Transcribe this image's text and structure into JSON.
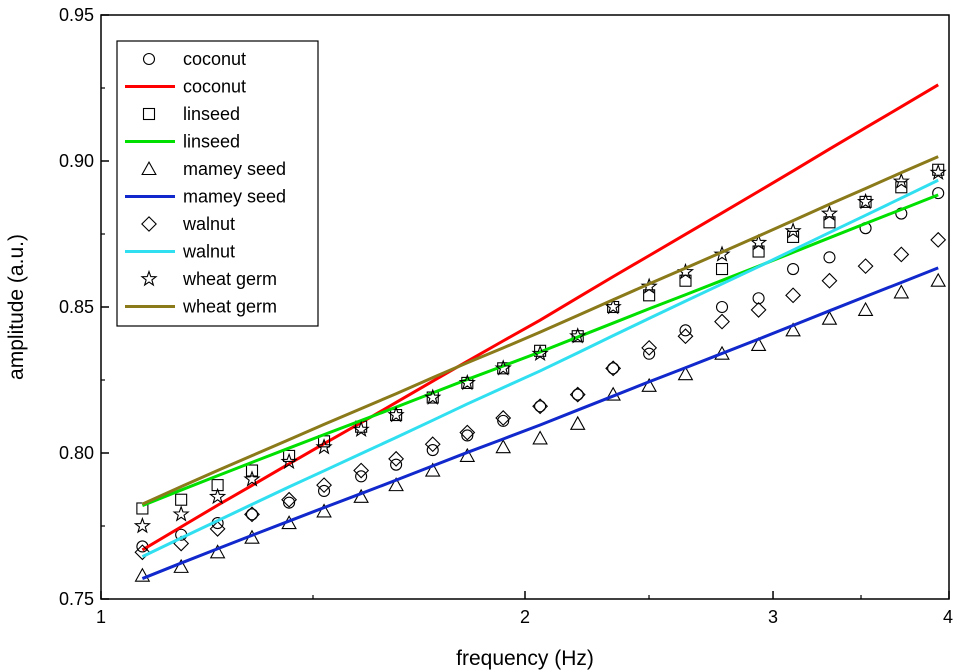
{
  "chart_data": {
    "type": "line",
    "title": "",
    "xlabel": "frequency (Hz)",
    "ylabel": "amplitude (a.u.)",
    "xscale": "log",
    "xlim": [
      1,
      4
    ],
    "ylim": [
      0.75,
      0.95
    ],
    "xticks": [
      {
        "value": 1,
        "label": "1"
      },
      {
        "value": 2,
        "label": "2"
      },
      {
        "value": 3,
        "label": "3"
      },
      {
        "value": 4,
        "label": "4"
      }
    ],
    "yticks": [
      {
        "value": 0.75,
        "label": "0.75"
      },
      {
        "value": 0.8,
        "label": "0.80"
      },
      {
        "value": 0.85,
        "label": "0.85"
      },
      {
        "value": 0.9,
        "label": "0.90"
      },
      {
        "value": 0.95,
        "label": "0.95"
      }
    ],
    "grid": false,
    "legend_position": "top-left",
    "x": [
      1.07,
      1.14,
      1.21,
      1.28,
      1.36,
      1.44,
      1.53,
      1.62,
      1.72,
      1.82,
      1.93,
      2.05,
      2.18,
      2.31,
      2.45,
      2.6,
      2.76,
      2.93,
      3.1,
      3.29,
      3.49,
      3.7,
      3.93
    ],
    "series": [
      {
        "name": "coconut",
        "kind": "markers",
        "marker": "circle",
        "color": "#000000",
        "values": [
          0.768,
          0.772,
          0.776,
          0.779,
          0.783,
          0.787,
          0.792,
          0.796,
          0.801,
          0.806,
          0.811,
          0.816,
          0.82,
          0.829,
          0.834,
          0.842,
          0.85,
          0.853,
          0.863,
          0.867,
          0.877,
          0.882,
          0.889
        ]
      },
      {
        "name": "coconut",
        "kind": "line",
        "color": "#ff0000",
        "values": [
          0.7668,
          0.7747,
          0.7821,
          0.7889,
          0.7963,
          0.8032,
          0.8104,
          0.8173,
          0.8246,
          0.8314,
          0.8384,
          0.8455,
          0.8532,
          0.8604,
          0.8676,
          0.8749,
          0.8822,
          0.8896,
          0.8966,
          0.9041,
          0.9114,
          0.9186,
          0.9261
        ]
      },
      {
        "name": "linseed",
        "kind": "markers",
        "marker": "square",
        "color": "#000000",
        "values": [
          0.781,
          0.784,
          0.789,
          0.794,
          0.799,
          0.804,
          0.809,
          0.813,
          0.819,
          0.824,
          0.829,
          0.835,
          0.84,
          0.85,
          0.854,
          0.859,
          0.863,
          0.869,
          0.874,
          0.879,
          0.886,
          0.891,
          0.897
        ]
      },
      {
        "name": "linseed",
        "kind": "line",
        "color": "#00e000",
        "values": [
          0.782,
          0.7873,
          0.7922,
          0.7968,
          0.8017,
          0.8063,
          0.8111,
          0.8157,
          0.8206,
          0.8252,
          0.8298,
          0.8346,
          0.8397,
          0.8445,
          0.8494,
          0.8542,
          0.8591,
          0.864,
          0.8687,
          0.8737,
          0.8786,
          0.8834,
          0.8884
        ]
      },
      {
        "name": "mamey seed",
        "kind": "markers",
        "marker": "triangle",
        "color": "#000000",
        "values": [
          0.758,
          0.761,
          0.766,
          0.771,
          0.776,
          0.78,
          0.785,
          0.789,
          0.794,
          0.799,
          0.802,
          0.805,
          0.81,
          0.82,
          0.823,
          0.827,
          0.834,
          0.837,
          0.842,
          0.846,
          0.849,
          0.855,
          0.859
        ]
      },
      {
        "name": "mamey seed",
        "kind": "line",
        "color": "#1028cc",
        "values": [
          0.757,
          0.7623,
          0.7672,
          0.7718,
          0.7767,
          0.7813,
          0.7861,
          0.7907,
          0.7956,
          0.8002,
          0.8048,
          0.8096,
          0.8147,
          0.8195,
          0.8244,
          0.8292,
          0.8341,
          0.839,
          0.8437,
          0.8487,
          0.8536,
          0.8584,
          0.8634
        ]
      },
      {
        "name": "walnut",
        "kind": "markers",
        "marker": "diamond",
        "color": "#000000",
        "values": [
          0.766,
          0.769,
          0.774,
          0.779,
          0.784,
          0.789,
          0.794,
          0.798,
          0.803,
          0.807,
          0.812,
          0.816,
          0.82,
          0.829,
          0.836,
          0.84,
          0.845,
          0.849,
          0.854,
          0.859,
          0.864,
          0.868,
          0.873
        ]
      },
      {
        "name": "walnut",
        "kind": "line",
        "color": "#30e0f0",
        "values": [
          0.7645,
          0.7709,
          0.7768,
          0.7824,
          0.7884,
          0.7939,
          0.7998,
          0.8053,
          0.8112,
          0.8168,
          0.8224,
          0.8281,
          0.8343,
          0.8402,
          0.8461,
          0.852,
          0.8579,
          0.8638,
          0.8695,
          0.8755,
          0.8814,
          0.8873,
          0.8934
        ]
      },
      {
        "name": "wheat germ",
        "kind": "markers",
        "marker": "star",
        "color": "#000000",
        "values": [
          0.775,
          0.779,
          0.785,
          0.791,
          0.797,
          0.802,
          0.808,
          0.813,
          0.819,
          0.824,
          0.829,
          0.834,
          0.84,
          0.85,
          0.857,
          0.862,
          0.868,
          0.872,
          0.876,
          0.882,
          0.886,
          0.893,
          0.896
        ]
      },
      {
        "name": "wheat germ",
        "kind": "line",
        "color": "#8a7a1a",
        "values": [
          0.7825,
          0.7885,
          0.794,
          0.7991,
          0.8046,
          0.8098,
          0.8152,
          0.8203,
          0.8258,
          0.8309,
          0.836,
          0.8414,
          0.8471,
          0.8525,
          0.8579,
          0.8633,
          0.8688,
          0.8743,
          0.8796,
          0.8852,
          0.8906,
          0.896,
          0.9015
        ]
      }
    ]
  }
}
